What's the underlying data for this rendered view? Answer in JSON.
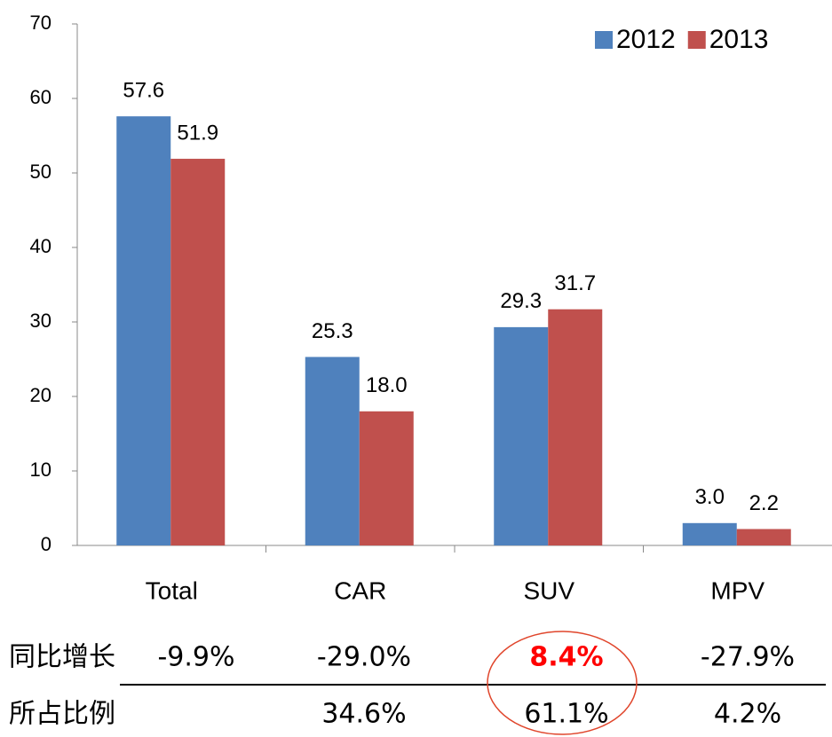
{
  "chart_data": {
    "type": "bar",
    "categories": [
      "Total",
      "CAR",
      "SUV",
      "MPV"
    ],
    "series": [
      {
        "name": "2012",
        "color": "#4f81bd",
        "values": [
          57.6,
          25.3,
          29.3,
          3
        ],
        "value_labels": [
          "57.6",
          "25.3",
          "29.3",
          "3.0"
        ]
      },
      {
        "name": "2013",
        "color": "#c0504d",
        "values": [
          51.9,
          18,
          31.7,
          2.2
        ],
        "value_labels": [
          "51.9",
          "18.0",
          "31.7",
          "2.2"
        ]
      }
    ],
    "ylim": [
      0,
      70
    ],
    "yticks": [
      0,
      10,
      20,
      30,
      40,
      50,
      60,
      70
    ],
    "grid": false,
    "legend": "top-right"
  },
  "table": {
    "rows": [
      {
        "label": "同比增长",
        "cells": [
          "-9.9%",
          "-29.0%",
          "8.4%",
          "-27.9%"
        ],
        "highlight": 2
      },
      {
        "label": "所占比例",
        "cells": [
          null,
          "34.6%",
          "61.1%",
          "4.2%"
        ]
      }
    ]
  }
}
